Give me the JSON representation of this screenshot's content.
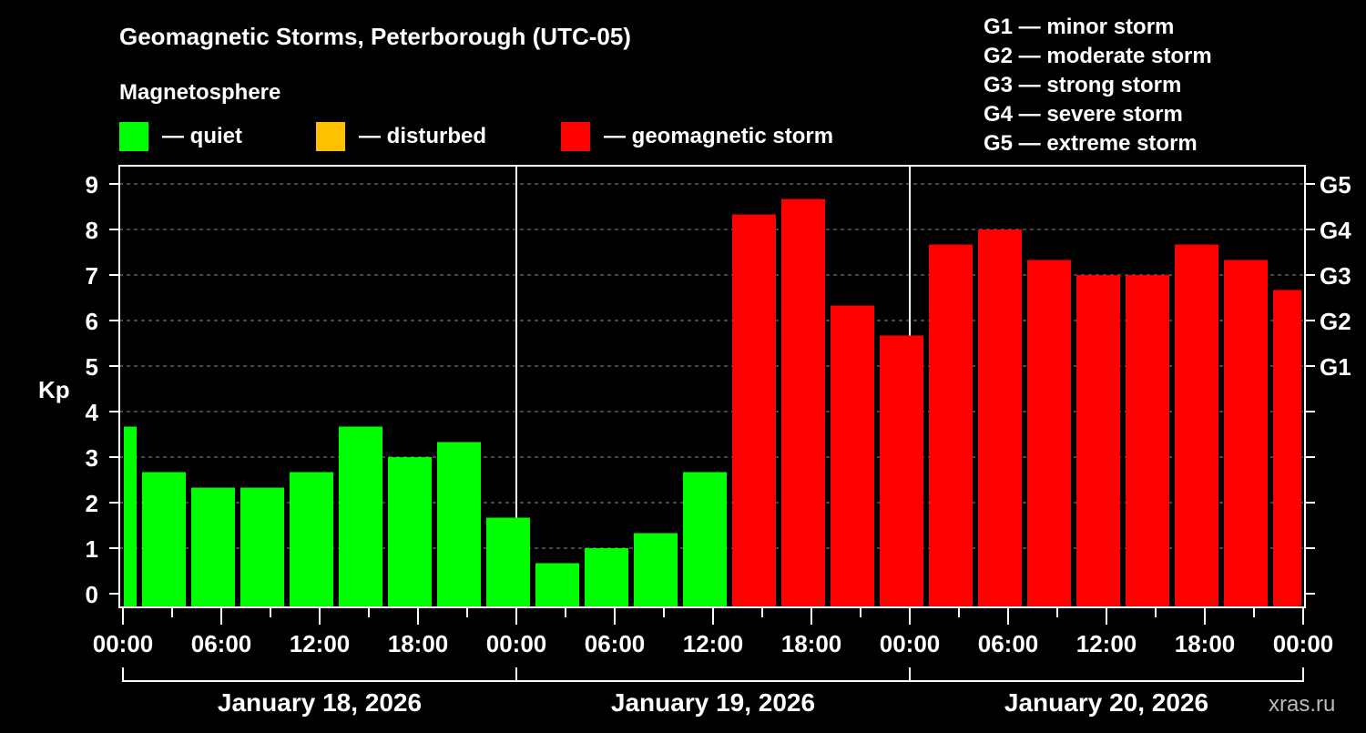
{
  "chart_data": {
    "type": "bar",
    "title": "Geomagnetic Storms, Peterborough (UTC-05)",
    "legend_title": "Magnetosphere",
    "legend": [
      {
        "label": "— quiet",
        "color": "#00ff00"
      },
      {
        "label": "— disturbed",
        "color": "#ffc000"
      },
      {
        "label": "— geomagnetic storm",
        "color": "#ff0000"
      }
    ],
    "storm_scale": [
      "G1 — minor storm",
      "G2 — moderate storm",
      "G3 — strong storm",
      "G4 — severe storm",
      "G5 — extreme storm"
    ],
    "ylabel": "Kp",
    "ylim": [
      0,
      9
    ],
    "yticks": [
      "0",
      "1",
      "2",
      "3",
      "4",
      "5",
      "6",
      "7",
      "8",
      "9"
    ],
    "right_ticks": [
      {
        "kp": 5,
        "label": "G1"
      },
      {
        "kp": 6,
        "label": "G2"
      },
      {
        "kp": 7,
        "label": "G3"
      },
      {
        "kp": 8,
        "label": "G4"
      },
      {
        "kp": 9,
        "label": "G5"
      }
    ],
    "xticks": [
      "00:00",
      "06:00",
      "12:00",
      "18:00",
      "00:00",
      "06:00",
      "12:00",
      "18:00",
      "00:00",
      "06:00",
      "12:00",
      "18:00",
      "00:00"
    ],
    "days": [
      "January 18, 2026",
      "January 19, 2026",
      "January 20, 2026"
    ],
    "bar_hours_center_start": -0.5,
    "bar_interval_hours": 3,
    "values": [
      3.67,
      2.67,
      2.33,
      2.33,
      2.67,
      3.67,
      3.0,
      3.33,
      1.67,
      0.67,
      1.0,
      1.33,
      2.67,
      8.33,
      8.67,
      6.33,
      5.67,
      7.67,
      8.0,
      7.33,
      7.0,
      7.0,
      7.67,
      7.33,
      6.67
    ],
    "colors": {
      "quiet": "#00ff00",
      "disturbed": "#ffc000",
      "storm": "#ff0000"
    },
    "grid": true
  },
  "watermark": "xras.ru"
}
